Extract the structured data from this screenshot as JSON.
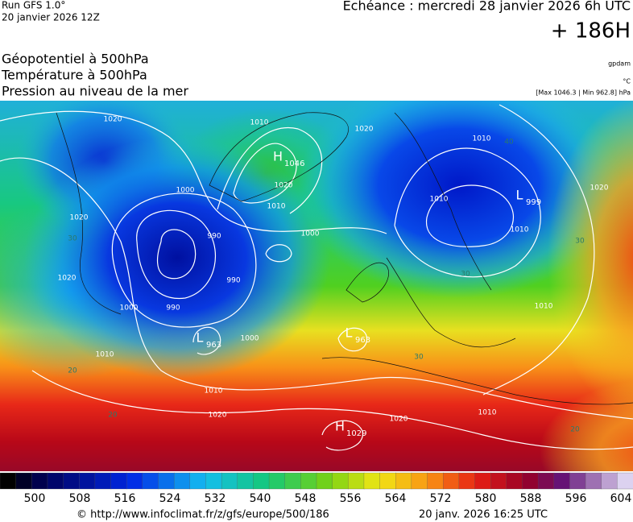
{
  "header": {
    "run": "Run GFS 1.0°",
    "run_date": "20 janvier 2026 12Z",
    "valid": "Echéance : mercredi 28 janvier 2026 6h UTC",
    "lead": "+ 186H",
    "fields": [
      "Géopotentiel à 500hPa",
      "Température à 500hPa",
      "Pression au niveau de la mer"
    ],
    "units": [
      "gpdam",
      "°C",
      "[Max 1046.3 | Min 962.8] hPa"
    ]
  },
  "map": {
    "isobar_labels": [
      "1020",
      "1010",
      "1020",
      "1010",
      "1000",
      "1020",
      "1010",
      "990",
      "1000",
      "1010",
      "1010",
      "1020",
      "1020",
      "990",
      "1000",
      "990",
      "1020",
      "1010",
      "1000",
      "1010",
      "1020",
      "1020",
      "1010",
      "1010"
    ],
    "temperature_labels": [
      "40",
      "30",
      "30",
      "30",
      "20",
      "20",
      "30",
      "20"
    ],
    "centers": [
      {
        "letter": "H",
        "value": "1046"
      },
      {
        "letter": "L",
        "value": "999"
      },
      {
        "letter": "L",
        "value": "963"
      },
      {
        "letter": "L",
        "value": "963"
      },
      {
        "letter": "H",
        "value": "1029"
      }
    ]
  },
  "colorbar": {
    "labels": [
      500,
      508,
      516,
      524,
      532,
      540,
      548,
      556,
      564,
      572,
      580,
      588,
      596,
      604
    ]
  },
  "footer": {
    "source": "© http://www.infoclimat.fr/z/gfs/europe/500/186",
    "generated": "20 janv. 2026 16:25 UTC"
  }
}
